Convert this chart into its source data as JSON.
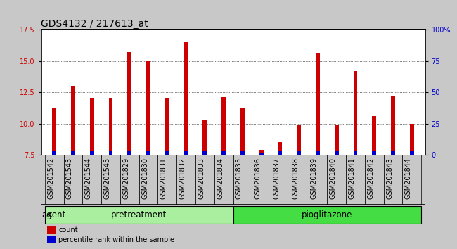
{
  "title": "GDS4132 / 217613_at",
  "categories": [
    "GSM201542",
    "GSM201543",
    "GSM201544",
    "GSM201545",
    "GSM201829",
    "GSM201830",
    "GSM201831",
    "GSM201832",
    "GSM201833",
    "GSM201834",
    "GSM201835",
    "GSM201836",
    "GSM201837",
    "GSM201838",
    "GSM201839",
    "GSM201840",
    "GSM201841",
    "GSM201842",
    "GSM201843",
    "GSM201844"
  ],
  "count_values": [
    11.2,
    13.0,
    12.0,
    12.0,
    15.7,
    15.0,
    12.0,
    16.5,
    10.3,
    12.1,
    11.2,
    7.9,
    8.5,
    9.9,
    15.6,
    9.9,
    14.2,
    10.6,
    12.2,
    10.0
  ],
  "pct_values_scaled": [
    0.28,
    0.28,
    0.28,
    0.28,
    0.28,
    0.28,
    0.28,
    0.28,
    0.28,
    0.28,
    0.28,
    0.13,
    0.28,
    0.28,
    0.28,
    0.28,
    0.28,
    0.28,
    0.28,
    0.28
  ],
  "ymin": 7.5,
  "ymax": 17.5,
  "yticks_left": [
    7.5,
    10.0,
    12.5,
    15.0,
    17.5
  ],
  "yticks_right_vals": [
    7.5,
    10.0,
    12.5,
    15.0,
    17.5
  ],
  "yticks_right_labels": [
    "0",
    "25",
    "50",
    "75",
    "100%"
  ],
  "bar_color": "#cc0000",
  "pct_color": "#0000cc",
  "groups": [
    {
      "label": "pretreatment",
      "start": 0,
      "end": 10,
      "color": "#aaeea0"
    },
    {
      "label": "pioglitazone",
      "start": 10,
      "end": 20,
      "color": "#44dd44"
    }
  ],
  "agent_label": "agent",
  "legend_count": "count",
  "legend_pct": "percentile rank within the sample",
  "bg_color": "#c8c8c8",
  "plot_bg": "#ffffff",
  "title_fontsize": 10,
  "tick_fontsize": 7,
  "label_fontsize": 8.5,
  "bar_width": 0.22
}
